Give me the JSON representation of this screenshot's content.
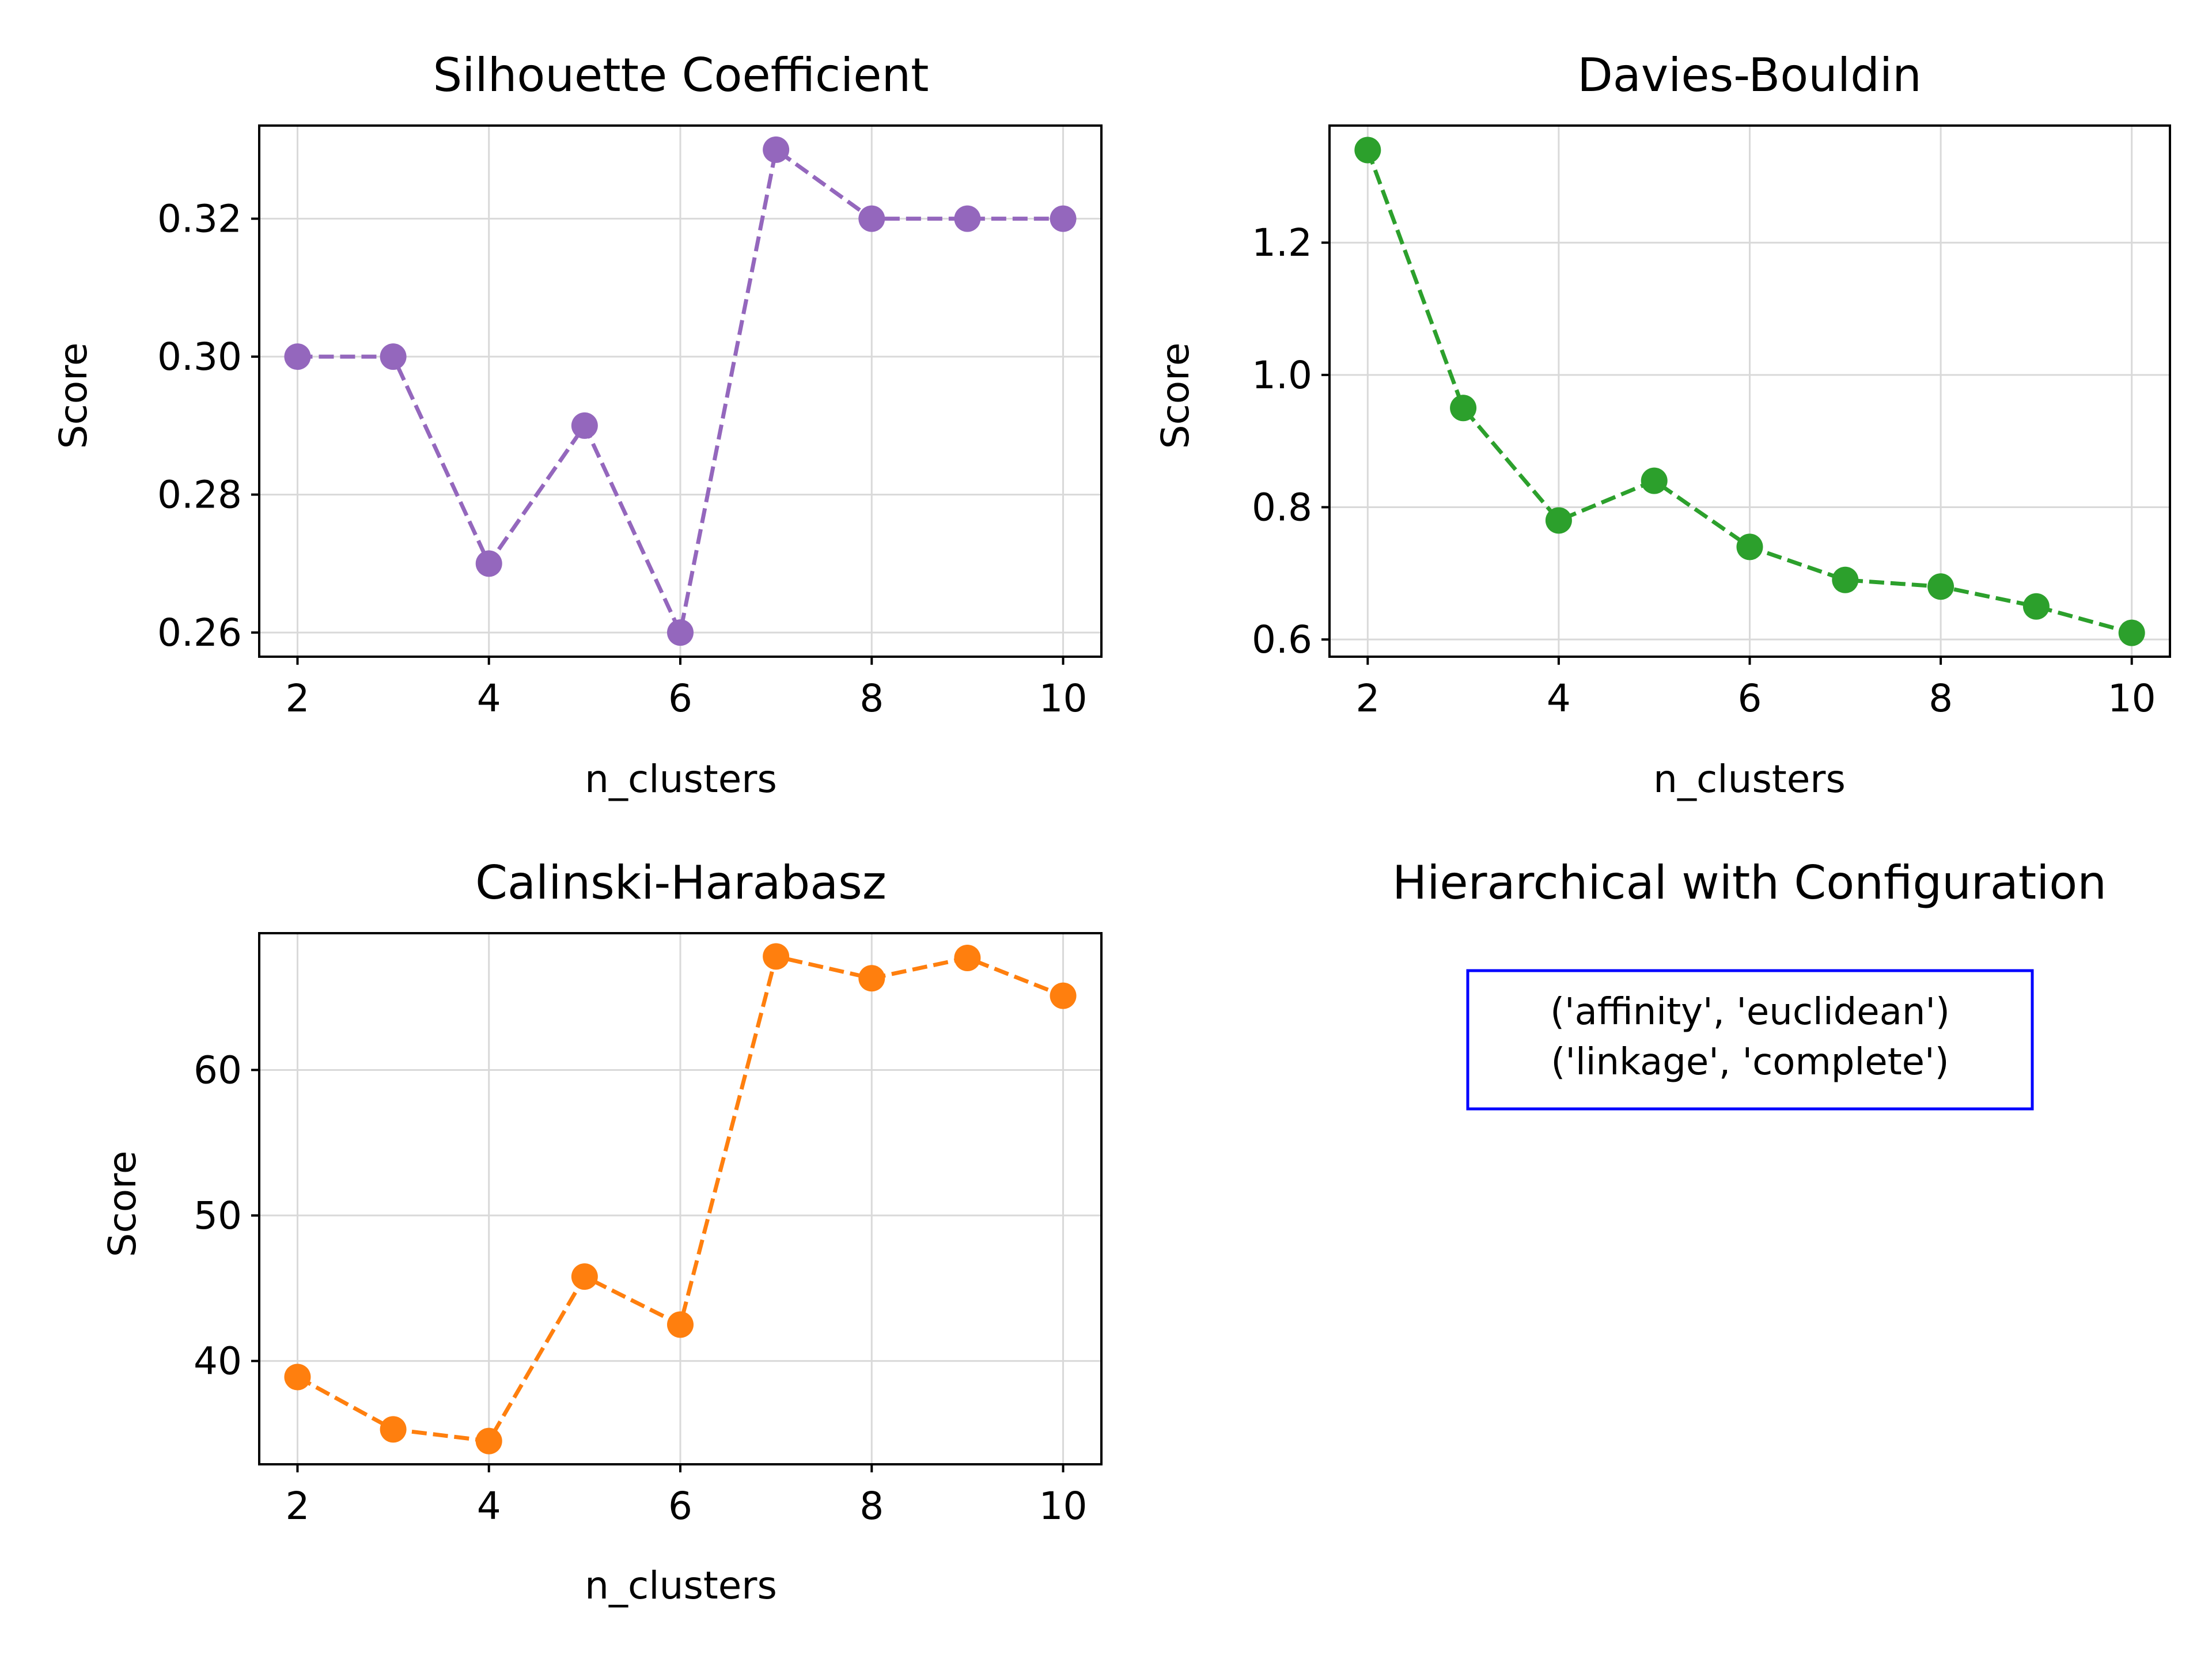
{
  "chart_data": [
    {
      "type": "line",
      "title": "Silhouette Coefficient",
      "xlabel": "n_clusters",
      "ylabel": "Score",
      "color": "#9467bd",
      "line_style": "dashed",
      "marker": "circle",
      "grid": true,
      "x": [
        2,
        3,
        4,
        5,
        6,
        7,
        8,
        9,
        10
      ],
      "values": [
        0.3,
        0.3,
        0.27,
        0.29,
        0.26,
        0.33,
        0.32,
        0.32,
        0.32
      ],
      "xlim": [
        1.6,
        10.4
      ],
      "ylim": [
        0.2565,
        0.3335
      ],
      "xticks": [
        2,
        4,
        6,
        8,
        10
      ],
      "xtick_labels": [
        "2",
        "4",
        "6",
        "8",
        "10"
      ],
      "yticks": [
        0.26,
        0.28,
        0.3,
        0.32
      ],
      "ytick_labels": [
        "0.26",
        "0.28",
        "0.30",
        "0.32"
      ]
    },
    {
      "type": "line",
      "title": "Davies-Bouldin",
      "xlabel": "n_clusters",
      "ylabel": "Score",
      "color": "#2ca02c",
      "line_style": "dashed",
      "marker": "circle",
      "grid": true,
      "x": [
        2,
        3,
        4,
        5,
        6,
        7,
        8,
        9,
        10
      ],
      "values": [
        1.34,
        0.95,
        0.78,
        0.84,
        0.74,
        0.69,
        0.68,
        0.65,
        0.61
      ],
      "xlim": [
        1.6,
        10.4
      ],
      "ylim": [
        0.574,
        1.377
      ],
      "xticks": [
        2,
        4,
        6,
        8,
        10
      ],
      "xtick_labels": [
        "2",
        "4",
        "6",
        "8",
        "10"
      ],
      "yticks": [
        0.6,
        0.8,
        1.0,
        1.2
      ],
      "ytick_labels": [
        "0.6",
        "0.8",
        "1.0",
        "1.2"
      ]
    },
    {
      "type": "line",
      "title": "Calinski-Harabasz",
      "xlabel": "n_clusters",
      "ylabel": "Score",
      "color": "#ff7f0e",
      "line_style": "dashed",
      "marker": "circle",
      "grid": true,
      "x": [
        2,
        3,
        4,
        5,
        6,
        7,
        8,
        9,
        10
      ],
      "values": [
        38.9,
        35.3,
        34.5,
        45.8,
        42.5,
        67.8,
        66.3,
        67.7,
        65.1
      ],
      "xlim": [
        1.6,
        10.4
      ],
      "ylim": [
        32.9,
        69.4
      ],
      "xticks": [
        2,
        4,
        6,
        8,
        10
      ],
      "xtick_labels": [
        "2",
        "4",
        "6",
        "8",
        "10"
      ],
      "yticks": [
        40,
        50,
        60
      ],
      "ytick_labels": [
        "40",
        "50",
        "60"
      ]
    }
  ],
  "config_panel": {
    "title": "Hierarchical with Configuration",
    "lines": [
      "('affinity', 'euclidean')",
      "('linkage', 'complete')"
    ],
    "border_color": "#0000ff"
  }
}
